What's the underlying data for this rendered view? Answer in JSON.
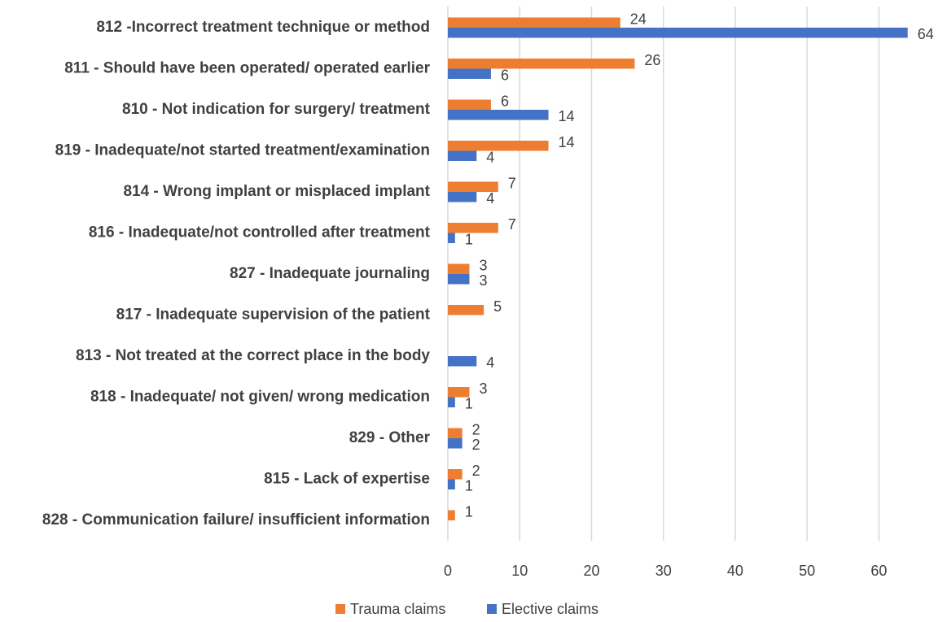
{
  "chart_data": {
    "type": "hbar",
    "categories": [
      "812 -Incorrect treatment technique or method",
      "811 -  Should have been operated/ operated earlier",
      "810 - Not indication for surgery/ treatment",
      "819 - Inadequate/not started treatment/examination",
      "814 - Wrong implant or misplaced implant",
      "816 - Inadequate/not controlled after treatment",
      "827 - Inadequate journaling",
      "817 - Inadequate supervision of the patient",
      "813 - Not treated at the correct place in the body",
      "818 - Inadequate/ not given/ wrong medication",
      "829 - Other",
      "815 - Lack of expertise",
      "828 - Communication failure/ insufficient information"
    ],
    "series": [
      {
        "name": "Trauma claims",
        "color": "#ed7d31",
        "values": [
          24,
          26,
          6,
          14,
          7,
          7,
          3,
          5,
          null,
          3,
          2,
          2,
          1
        ]
      },
      {
        "name": "Elective claims",
        "color": "#4472c4",
        "values": [
          64,
          6,
          14,
          4,
          4,
          1,
          3,
          null,
          4,
          1,
          2,
          1,
          null
        ]
      }
    ],
    "xlim": [
      0,
      68
    ],
    "xticks": [
      0,
      10,
      20,
      30,
      40,
      50,
      60
    ],
    "grid": true,
    "legend": "bottom"
  }
}
